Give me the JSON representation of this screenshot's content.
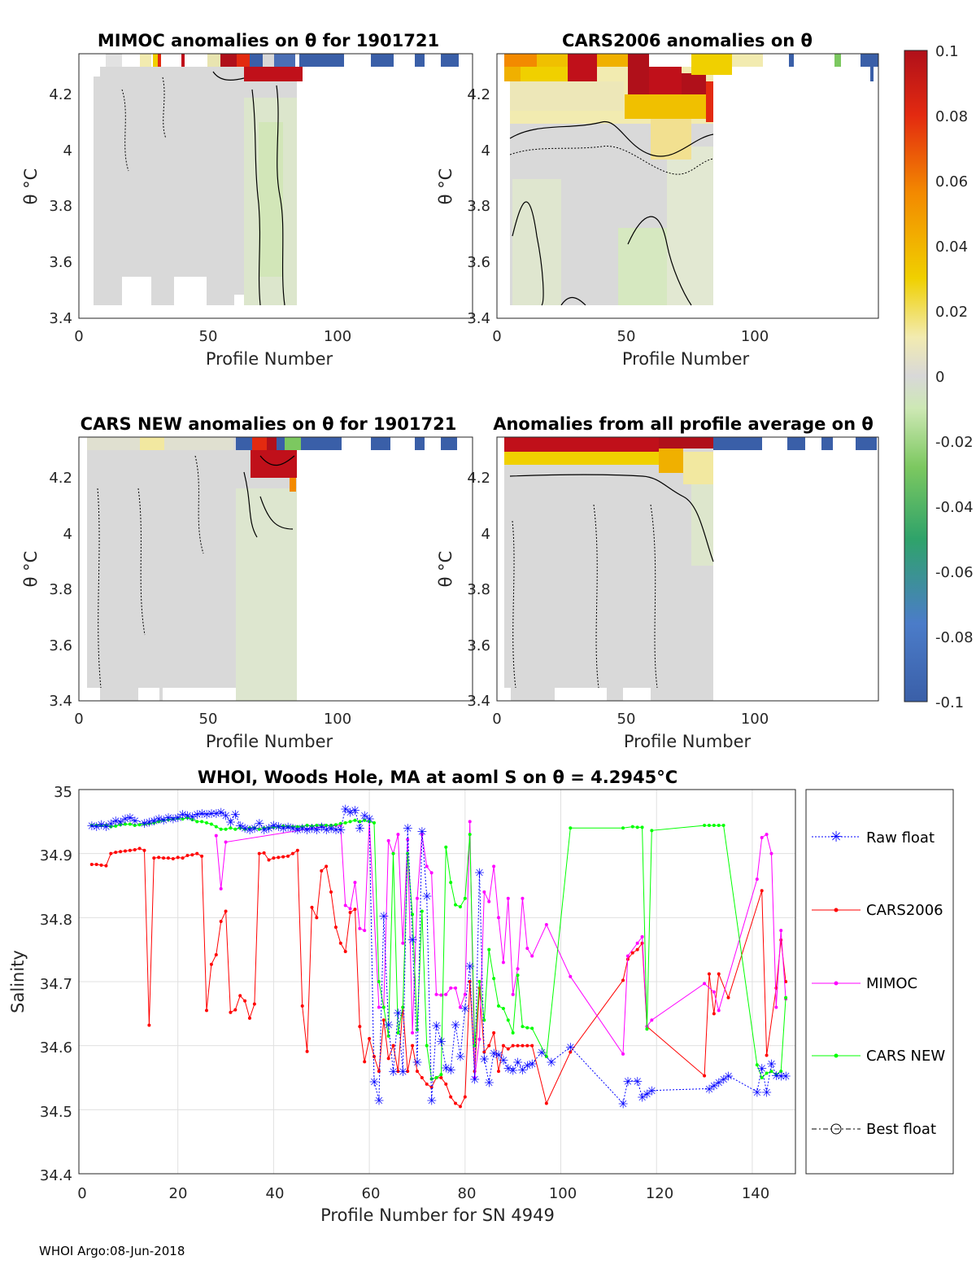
{
  "footer": "WHOI Argo:08-Jun-2018",
  "colors": {
    "raw_float": "#0000ff",
    "cars2006": "#ff0000",
    "mimoc": "#ff00ff",
    "cars_new": "#00ff00",
    "best_float": "#000000"
  },
  "colorbar": {
    "ticks": [
      "0.1",
      "0.08",
      "0.06",
      "0.04",
      "0.02",
      "0",
      "-0.02",
      "-0.04",
      "-0.06",
      "-0.08",
      "-0.1"
    ],
    "range": [
      -0.1,
      0.1
    ]
  },
  "chart_data": [
    {
      "type": "heatmap",
      "title": "MIMOC anomalies on θ  for 1901721",
      "xlabel": "Profile Number",
      "ylabel": "θ °C",
      "xlim": [
        0,
        148
      ],
      "ylim": [
        3.4,
        4.35
      ],
      "xticks": [
        "0",
        "50",
        "100"
      ],
      "yticks": [
        "4.2",
        "4",
        "3.8",
        "3.6",
        "3.4"
      ]
    },
    {
      "type": "heatmap",
      "title": "CARS2006 anomalies on θ",
      "xlabel": "Profile Number",
      "ylabel": "θ °C",
      "xlim": [
        0,
        148
      ],
      "ylim": [
        3.4,
        4.35
      ],
      "xticks": [
        "0",
        "50",
        "100"
      ],
      "yticks": [
        "4.2",
        "4",
        "3.8",
        "3.6",
        "3.4"
      ]
    },
    {
      "type": "heatmap",
      "title": "CARS NEW anomalies on θ for 1901721",
      "xlabel": "Profile Number",
      "ylabel": "θ °C",
      "xlim": [
        0,
        148
      ],
      "ylim": [
        3.4,
        4.35
      ],
      "xticks": [
        "0",
        "50",
        "100"
      ],
      "yticks": [
        "4.2",
        "4",
        "3.8",
        "3.6",
        "3.4"
      ]
    },
    {
      "type": "heatmap",
      "title": "Anomalies from all profile average on θ",
      "xlabel": "Profile Number",
      "ylabel": "θ °C",
      "xlim": [
        0,
        148
      ],
      "ylim": [
        3.4,
        4.35
      ],
      "xticks": [
        "0",
        "50",
        "100"
      ],
      "yticks": [
        "4.2",
        "4",
        "3.8",
        "3.6",
        "3.4"
      ]
    },
    {
      "type": "line",
      "title": "WHOI, Woods Hole, MA at aoml S on θ = 4.2945°C",
      "xlabel": "Profile Number for SN 4949",
      "ylabel": "Salinity",
      "xlim": [
        0,
        148
      ],
      "ylim": [
        34.4,
        35
      ],
      "grid": true,
      "legend_position": "right-outside",
      "xticks": [
        "0",
        "20",
        "40",
        "60",
        "80",
        "100",
        "120",
        "140"
      ],
      "yticks": [
        "35",
        "34.9",
        "34.8",
        "34.7",
        "34.6",
        "34.5",
        "34.4"
      ],
      "series": [
        {
          "name": "Raw float",
          "x": [
            2,
            3,
            4,
            5,
            6,
            7,
            8,
            9,
            10,
            11,
            13,
            14,
            15,
            16,
            17,
            18,
            19,
            20,
            21,
            22,
            23,
            24,
            25,
            26,
            27,
            28,
            29,
            30,
            31,
            32,
            33,
            34,
            35,
            36,
            37,
            38,
            39,
            40,
            41,
            42,
            43,
            44,
            45,
            46,
            47,
            48,
            49,
            50,
            51,
            52,
            53,
            54,
            55,
            56,
            57,
            58,
            59,
            60,
            61,
            62,
            63,
            64,
            65,
            66,
            67,
            68,
            69,
            70,
            71,
            72,
            73,
            74,
            75,
            76,
            77,
            78,
            79,
            80,
            81,
            82,
            83,
            84,
            85,
            86,
            87,
            88,
            89,
            90,
            91,
            92,
            93,
            94,
            96,
            98,
            102,
            113,
            114,
            116,
            117,
            118,
            119,
            131,
            132,
            133,
            134,
            135,
            141,
            142,
            143,
            144,
            145,
            146,
            147
          ],
          "y": [
            34.944,
            34.943,
            34.946,
            34.943,
            34.947,
            34.952,
            34.95,
            34.955,
            34.957,
            34.952,
            34.948,
            34.95,
            34.952,
            34.955,
            34.953,
            34.957,
            34.955,
            34.957,
            34.962,
            34.96,
            34.958,
            34.962,
            34.963,
            34.962,
            34.963,
            34.963,
            34.965,
            34.96,
            34.95,
            34.962,
            34.944,
            34.94,
            34.938,
            34.94,
            34.948,
            34.938,
            34.94,
            34.945,
            34.943,
            34.94,
            34.942,
            34.94,
            34.938,
            34.94,
            34.938,
            34.94,
            34.938,
            34.942,
            34.938,
            34.94,
            34.938,
            34.938,
            34.97,
            34.965,
            34.968,
            34.94,
            34.96,
            34.955,
            34.544,
            34.515,
            34.803,
            34.633,
            34.56,
            34.652,
            34.56,
            34.94,
            34.766,
            34.575,
            34.935,
            34.834,
            34.515,
            34.632,
            34.607,
            34.566,
            34.563,
            34.633,
            34.584,
            34.659,
            34.725,
            34.548,
            34.871,
            34.58,
            34.543,
            34.589,
            34.586,
            34.578,
            34.565,
            34.562,
            34.575,
            34.563,
            34.57,
            34.572,
            34.59,
            34.575,
            34.598,
            34.51,
            34.545,
            34.545,
            34.52,
            34.525,
            34.53,
            34.533,
            34.538,
            34.543,
            34.548,
            34.553,
            34.528,
            34.565,
            34.528,
            34.572,
            34.554,
            34.553,
            34.553
          ]
        },
        {
          "name": "CARS2006",
          "x": [
            2,
            3,
            4,
            5,
            6,
            7,
            8,
            9,
            10,
            11,
            12,
            13,
            14,
            15,
            16,
            17,
            18,
            19,
            20,
            21,
            22,
            23,
            24,
            25,
            26,
            27,
            28,
            29,
            30,
            31,
            32,
            33,
            34,
            35,
            36,
            37,
            38,
            39,
            40,
            41,
            42,
            43,
            44,
            45,
            46,
            47,
            48,
            49,
            50,
            51,
            52,
            53,
            54,
            55,
            56,
            57,
            58,
            59,
            60,
            61,
            62,
            63,
            64,
            65,
            66,
            67,
            68,
            69,
            70,
            71,
            72,
            73,
            74,
            75,
            76,
            77,
            78,
            79,
            80,
            81,
            82,
            83,
            84,
            85,
            86,
            87,
            88,
            89,
            90,
            91,
            92,
            93,
            94,
            97,
            102,
            113,
            114,
            115,
            116,
            117,
            118,
            130,
            131,
            132,
            133,
            135,
            142,
            143,
            145,
            146,
            147
          ],
          "y": [
            34.883,
            34.883,
            34.882,
            34.881,
            34.9,
            34.902,
            34.903,
            34.904,
            34.905,
            34.906,
            34.908,
            34.905,
            34.632,
            34.893,
            34.894,
            34.893,
            34.893,
            34.892,
            34.894,
            34.893,
            34.897,
            34.898,
            34.9,
            34.896,
            34.655,
            34.727,
            34.742,
            34.794,
            34.81,
            34.652,
            34.656,
            34.678,
            34.67,
            34.643,
            34.665,
            34.9,
            34.901,
            34.89,
            34.893,
            34.894,
            34.895,
            34.896,
            34.9,
            34.905,
            34.662,
            34.591,
            34.816,
            34.8,
            34.873,
            34.88,
            34.84,
            34.785,
            34.76,
            34.747,
            34.808,
            34.813,
            34.63,
            34.575,
            34.611,
            34.583,
            34.56,
            34.64,
            34.58,
            34.6,
            34.56,
            34.66,
            34.56,
            34.6,
            34.56,
            34.55,
            34.54,
            34.535,
            34.55,
            34.55,
            34.54,
            34.52,
            34.51,
            34.505,
            34.52,
            34.7,
            34.56,
            34.69,
            34.59,
            34.6,
            34.62,
            34.56,
            34.6,
            34.595,
            34.6,
            34.6,
            34.6,
            34.6,
            34.6,
            34.51,
            34.59,
            34.702,
            34.735,
            34.745,
            34.75,
            34.76,
            34.63,
            34.553,
            34.712,
            34.65,
            34.712,
            34.675,
            34.842,
            34.585,
            34.69,
            34.765,
            34.7
          ]
        },
        {
          "name": "MIMOC",
          "x": [
            28,
            29,
            30,
            52,
            53,
            54,
            55,
            56,
            57,
            58,
            59,
            60,
            62,
            63,
            64,
            65,
            66,
            67,
            68,
            69,
            70,
            71,
            72,
            73,
            74,
            75,
            76,
            77,
            78,
            79,
            80,
            81,
            82,
            83,
            84,
            85,
            86,
            87,
            88,
            89,
            90,
            91,
            92,
            93,
            94,
            97,
            102,
            113,
            114,
            116,
            117,
            118,
            119,
            130,
            132,
            133,
            141,
            142,
            143,
            144,
            145,
            146,
            147
          ],
          "y": [
            34.928,
            34.845,
            34.918,
            34.944,
            34.944,
            34.944,
            34.819,
            34.814,
            34.855,
            34.783,
            34.78,
            34.95,
            34.66,
            34.66,
            34.92,
            34.9,
            34.93,
            34.76,
            34.922,
            34.62,
            34.83,
            34.93,
            34.88,
            34.87,
            34.68,
            34.679,
            34.68,
            34.69,
            34.69,
            34.66,
            34.68,
            34.95,
            34.55,
            34.61,
            34.84,
            34.825,
            34.88,
            34.8,
            34.73,
            34.83,
            34.68,
            34.72,
            34.83,
            34.752,
            34.74,
            34.789,
            34.708,
            34.587,
            34.74,
            34.76,
            34.77,
            34.63,
            34.64,
            34.697,
            34.684,
            34.655,
            34.86,
            34.925,
            34.93,
            34.9,
            34.66,
            34.78,
            34.673
          ]
        },
        {
          "name": "CARS NEW",
          "x": [
            2,
            3,
            4,
            5,
            6,
            7,
            8,
            9,
            10,
            11,
            12,
            13,
            14,
            15,
            16,
            17,
            18,
            19,
            20,
            21,
            22,
            23,
            24,
            25,
            26,
            27,
            28,
            29,
            30,
            31,
            32,
            33,
            34,
            35,
            36,
            37,
            38,
            39,
            40,
            41,
            42,
            43,
            44,
            45,
            46,
            47,
            48,
            49,
            50,
            51,
            52,
            53,
            54,
            55,
            56,
            57,
            58,
            59,
            60,
            61,
            62,
            63,
            64,
            65,
            66,
            67,
            68,
            69,
            70,
            71,
            72,
            73,
            74,
            75,
            76,
            77,
            78,
            79,
            80,
            81,
            82,
            83,
            84,
            85,
            86,
            87,
            88,
            89,
            90,
            91,
            92,
            93,
            94,
            97,
            102,
            113,
            115,
            116,
            117,
            118,
            119,
            130,
            131,
            132,
            133,
            134,
            141,
            142,
            143,
            144,
            145,
            146,
            147
          ],
          "y": [
            34.944,
            34.944,
            34.944,
            34.944,
            34.942,
            34.943,
            34.945,
            34.946,
            34.946,
            34.944,
            34.945,
            34.946,
            34.947,
            34.948,
            34.95,
            34.952,
            34.953,
            34.954,
            34.955,
            34.954,
            34.956,
            34.953,
            34.95,
            34.95,
            34.948,
            34.946,
            34.942,
            34.938,
            34.938,
            34.94,
            34.938,
            34.94,
            34.938,
            34.94,
            34.94,
            34.938,
            34.94,
            34.94,
            34.941,
            34.942,
            34.943,
            34.942,
            34.942,
            34.942,
            34.942,
            34.944,
            34.943,
            34.944,
            34.944,
            34.944,
            34.944,
            34.945,
            34.947,
            34.948,
            34.95,
            34.952,
            34.95,
            34.952,
            34.95,
            34.948,
            34.7,
            34.66,
            34.615,
            34.9,
            34.62,
            34.66,
            34.9,
            34.805,
            34.625,
            34.81,
            34.6,
            34.548,
            34.55,
            34.555,
            34.91,
            34.855,
            34.82,
            34.817,
            34.83,
            34.93,
            34.6,
            34.7,
            34.64,
            34.75,
            34.705,
            34.662,
            34.658,
            34.64,
            34.62,
            34.71,
            34.63,
            34.628,
            34.627,
            34.583,
            34.94,
            34.94,
            34.942,
            34.941,
            34.941,
            34.626,
            34.936,
            34.944,
            34.944,
            34.944,
            34.944,
            34.944,
            34.57,
            34.55,
            34.557,
            34.56,
            34.555,
            34.56,
            34.675
          ]
        },
        {
          "name": "Best float",
          "x": [],
          "y": []
        }
      ]
    }
  ]
}
